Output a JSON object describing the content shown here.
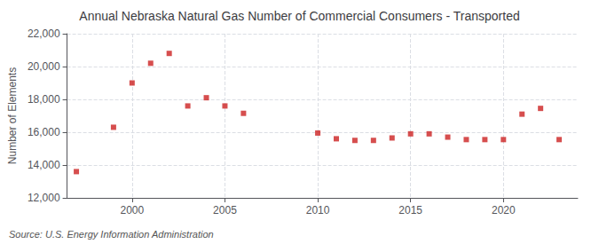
{
  "chart_data": {
    "type": "scatter",
    "title": "Annual Nebraska Natural Gas Number of Commercial Consumers - Transported",
    "ylabel": "Number of Elements",
    "source": "Source: U.S. Energy Information Administration",
    "x": [
      1997,
      1999,
      2000,
      2001,
      2002,
      2003,
      2004,
      2005,
      2006,
      2010,
      2011,
      2012,
      2013,
      2014,
      2015,
      2016,
      2017,
      2018,
      2019,
      2020,
      2021,
      2022,
      2023
    ],
    "values": [
      13600,
      16300,
      19000,
      20200,
      20800,
      17600,
      18100,
      17600,
      17150,
      15950,
      15600,
      15500,
      15500,
      15650,
      15900,
      15900,
      15700,
      15550,
      15550,
      15550,
      17100,
      17450,
      15550
    ],
    "color": "#cc2222",
    "marker": "square",
    "xlim": [
      1996.5,
      2024
    ],
    "xticks": [
      2000,
      2005,
      2010,
      2015,
      2020
    ],
    "ylim": [
      12000,
      22000
    ],
    "yticks": [
      {
        "value": 12000,
        "label": "12,000"
      },
      {
        "value": 14000,
        "label": "14,000"
      },
      {
        "value": 16000,
        "label": "16,000"
      },
      {
        "value": 18000,
        "label": "18,000"
      },
      {
        "value": 20000,
        "label": "20,000"
      },
      {
        "value": 22000,
        "label": "22,000"
      }
    ],
    "grid": true
  }
}
